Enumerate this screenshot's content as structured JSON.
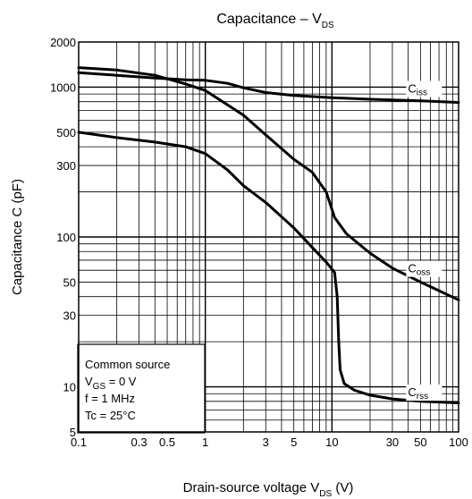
{
  "chart_data": {
    "type": "line",
    "title": {
      "main": "Capacitance – V",
      "sub": "DS"
    },
    "xlabel": {
      "main": "Drain-source voltage   V",
      "sub": "DS",
      "unit": "   (V)"
    },
    "ylabel": "Capacitance    C    (pF)",
    "x_scale": "log",
    "y_scale": "log",
    "xlim": [
      0.1,
      100
    ],
    "ylim": [
      5,
      2000
    ],
    "grid": true,
    "x_tick_labels": [
      {
        "value": 0.1,
        "label": "0.1"
      },
      {
        "value": 0.3,
        "label": "0.3"
      },
      {
        "value": 0.5,
        "label": "0.5"
      },
      {
        "value": 1,
        "label": "1"
      },
      {
        "value": 3,
        "label": "3"
      },
      {
        "value": 5,
        "label": "5"
      },
      {
        "value": 10,
        "label": "10"
      },
      {
        "value": 30,
        "label": "30"
      },
      {
        "value": 50,
        "label": "50"
      },
      {
        "value": 100,
        "label": "100"
      }
    ],
    "y_tick_labels": [
      {
        "value": 5,
        "label": "5"
      },
      {
        "value": 10,
        "label": "10"
      },
      {
        "value": 30,
        "label": "30"
      },
      {
        "value": 50,
        "label": "50"
      },
      {
        "value": 100,
        "label": "100"
      },
      {
        "value": 300,
        "label": "300"
      },
      {
        "value": 500,
        "label": "500"
      },
      {
        "value": 1000,
        "label": "1000"
      },
      {
        "value": 2000,
        "label": "2000"
      }
    ],
    "series": [
      {
        "name": "Ciss",
        "label_main": "C",
        "label_sub": "iss",
        "label_at": [
          50,
          1000
        ],
        "points": [
          [
            0.1,
            1250
          ],
          [
            0.2,
            1200
          ],
          [
            0.4,
            1150
          ],
          [
            0.7,
            1120
          ],
          [
            1.0,
            1110
          ],
          [
            1.5,
            1060
          ],
          [
            2.0,
            990
          ],
          [
            3.0,
            920
          ],
          [
            5.0,
            880
          ],
          [
            10,
            850
          ],
          [
            20,
            830
          ],
          [
            50,
            810
          ],
          [
            100,
            790
          ]
        ]
      },
      {
        "name": "Coss",
        "label_main": "C",
        "label_sub": "oss",
        "label_at": [
          50,
          63
        ],
        "points": [
          [
            0.1,
            1350
          ],
          [
            0.2,
            1300
          ],
          [
            0.4,
            1200
          ],
          [
            0.7,
            1050
          ],
          [
            1.0,
            950
          ],
          [
            2.0,
            650
          ],
          [
            3.0,
            480
          ],
          [
            5.0,
            330
          ],
          [
            7.0,
            270
          ],
          [
            9.0,
            200
          ],
          [
            10.5,
            135
          ],
          [
            13,
            105
          ],
          [
            20,
            78
          ],
          [
            30,
            62
          ],
          [
            50,
            50
          ],
          [
            100,
            38
          ]
        ]
      },
      {
        "name": "Crss",
        "label_main": "C",
        "label_sub": "rss",
        "label_at": [
          50,
          9.4
        ],
        "points": [
          [
            0.1,
            500
          ],
          [
            0.2,
            460
          ],
          [
            0.4,
            430
          ],
          [
            0.7,
            400
          ],
          [
            1.0,
            360
          ],
          [
            1.5,
            280
          ],
          [
            2.0,
            220
          ],
          [
            3.0,
            170
          ],
          [
            5.0,
            115
          ],
          [
            7.0,
            85
          ],
          [
            9.0,
            68
          ],
          [
            10.5,
            58
          ],
          [
            11,
            40
          ],
          [
            11.3,
            20
          ],
          [
            11.6,
            13
          ],
          [
            12.5,
            10.5
          ],
          [
            15,
            9.5
          ],
          [
            20,
            8.8
          ],
          [
            30,
            8.3
          ],
          [
            50,
            8.0
          ],
          [
            100,
            7.8
          ]
        ]
      }
    ],
    "annotation": {
      "lines": [
        {
          "text": "Common source",
          "sub": "",
          "rest": ""
        },
        {
          "text": "V",
          "sub": "GS",
          "rest": " = 0 V"
        },
        {
          "text": "f = 1 MHz",
          "sub": "",
          "rest": ""
        },
        {
          "text": "Tc = 25°C",
          "sub": "",
          "rest": ""
        }
      ]
    }
  }
}
